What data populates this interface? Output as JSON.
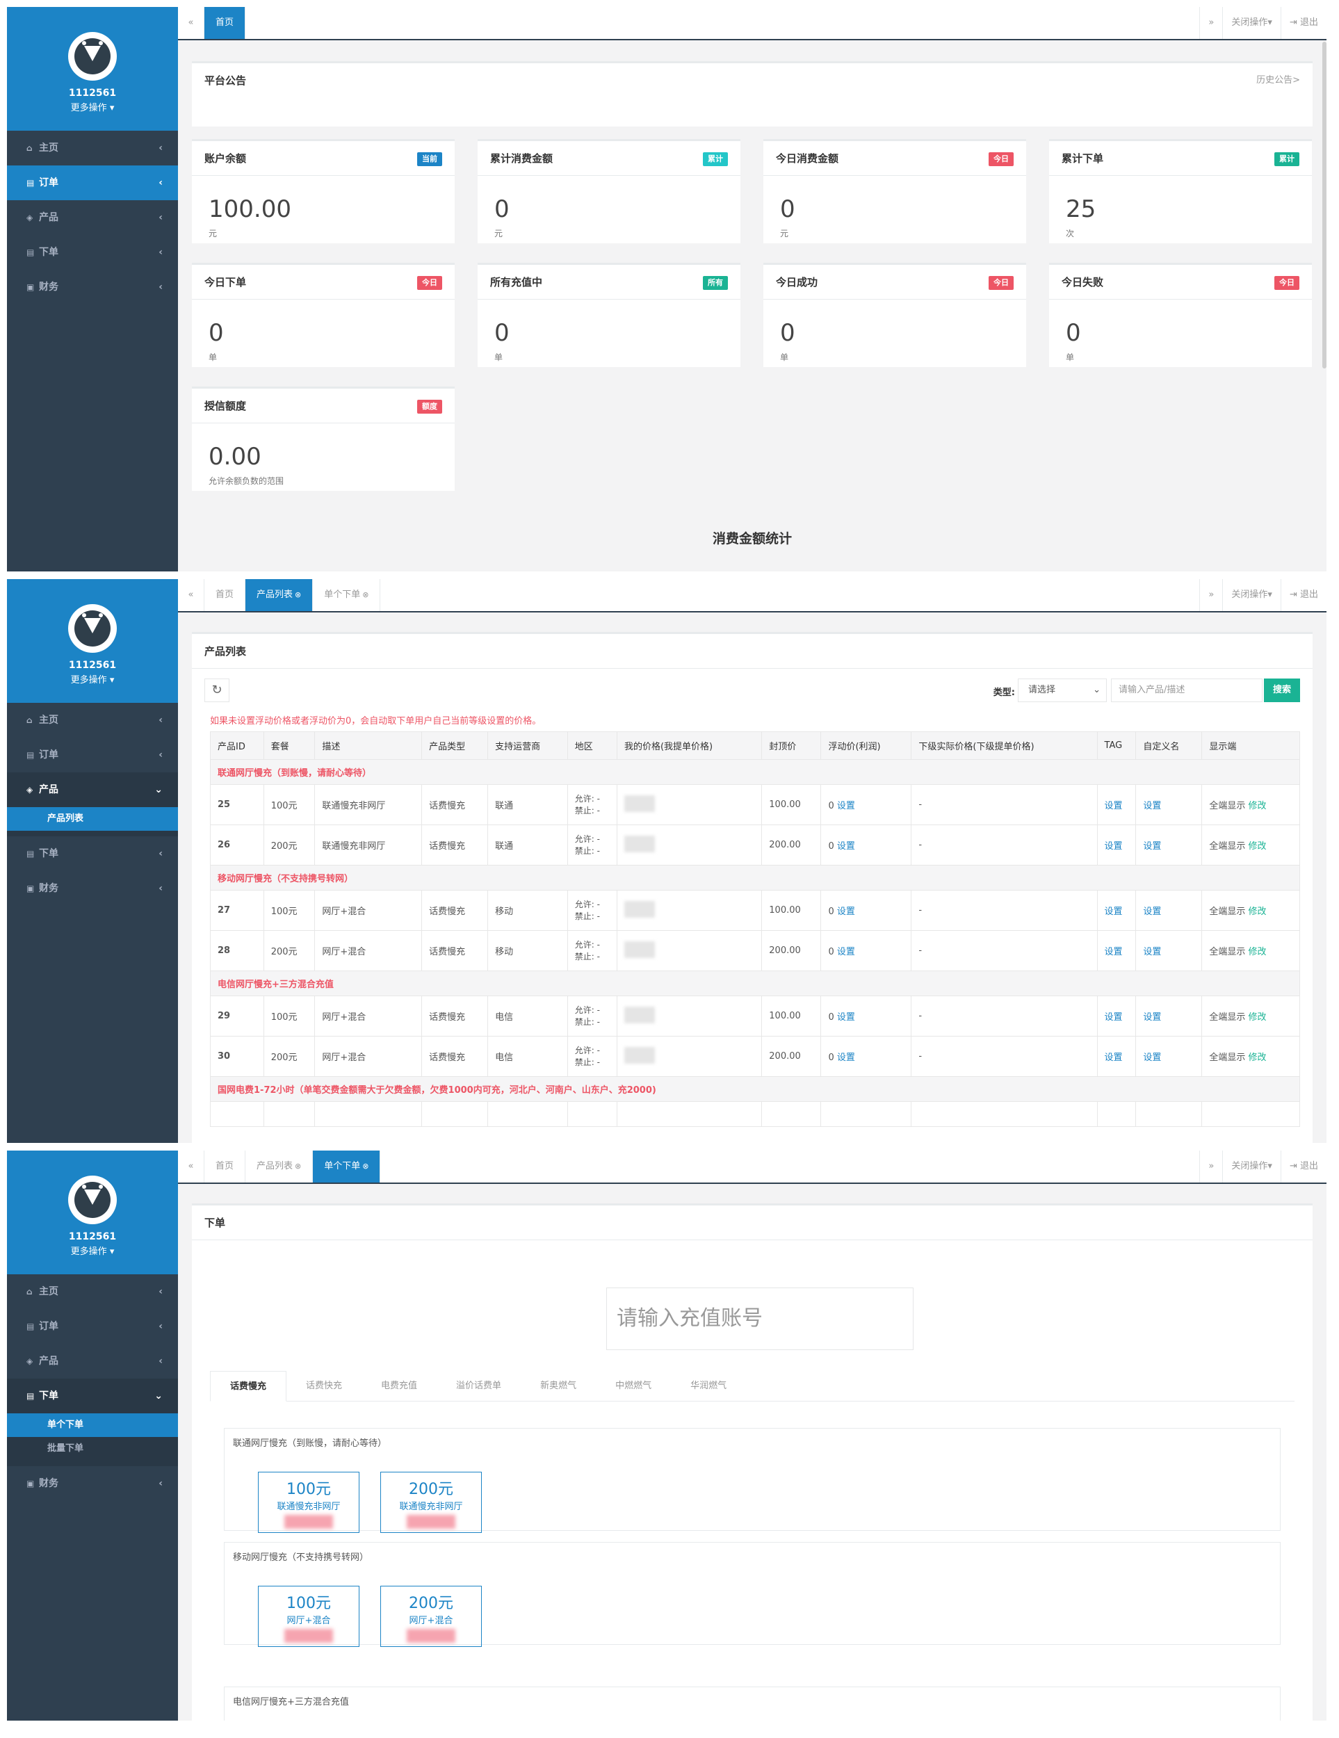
{
  "user": {
    "name": "1112561",
    "more": "更多操作"
  },
  "sidebar": {
    "home": "主页",
    "order": "订单",
    "product": "产品",
    "place_order": "下单",
    "finance": "财务",
    "product_list": "产品列表",
    "single_order": "单个下单",
    "batch_order": "批量下单"
  },
  "topbar": {
    "home_tab": "首页",
    "product_list_tab": "产品列表",
    "single_order_tab": "单个下单",
    "close_ops": "关闭操作",
    "logout": "退出"
  },
  "dashboard": {
    "notice_title": "平台公告",
    "history": "历史公告>",
    "cards": [
      {
        "title": "账户余额",
        "badge": "当前",
        "value": "100.00",
        "unit": "元",
        "color": "#1c84c6"
      },
      {
        "title": "累计消费金额",
        "badge": "累计",
        "value": "0",
        "unit": "元",
        "color": "#23c6c8"
      },
      {
        "title": "今日消费金额",
        "badge": "今日",
        "value": "0",
        "unit": "元",
        "color": "#ed5565"
      },
      {
        "title": "累计下单",
        "badge": "累计",
        "value": "25",
        "unit": "次",
        "color": "#1ab394"
      },
      {
        "title": "今日下单",
        "badge": "今日",
        "value": "0",
        "unit": "单",
        "color": "#ed5565"
      },
      {
        "title": "所有充值中",
        "badge": "所有",
        "value": "0",
        "unit": "单",
        "color": "#1ab394"
      },
      {
        "title": "今日成功",
        "badge": "今日",
        "value": "0",
        "unit": "单",
        "color": "#ed5565"
      },
      {
        "title": "今日失败",
        "badge": "今日",
        "value": "0",
        "unit": "单",
        "color": "#ed5565"
      },
      {
        "title": "授信额度",
        "badge": "额度",
        "value": "0.00",
        "unit": "允许余额负数的范围",
        "color": "#ed5565"
      }
    ],
    "stat_title": "消费金额统计"
  },
  "products": {
    "title": "产品列表",
    "type_label": "类型:",
    "type_value": "请选择",
    "search_placeholder": "请输入产品/描述",
    "search_btn": "搜索",
    "warning": "如果未设置浮动价格或者浮动价为0，会自动取下单用户自己当前等级设置的价格。",
    "headers": [
      "产品ID",
      "套餐",
      "描述",
      "产品类型",
      "支持运营商",
      "地区",
      "我的价格(我提单价格)",
      "封顶价",
      "浮动价(利润)",
      "下级实际价格(下级提单价格)",
      "TAG",
      "自定义名",
      "显示端"
    ],
    "allow": "允许: -",
    "forbid": "禁止: -",
    "float_value": "0",
    "set_link": "设置",
    "dash": "-",
    "display": "全端显示",
    "edit": "修改",
    "groups": [
      {
        "name": "联通网厅慢充（到账慢，请耐心等待）",
        "rows": [
          {
            "id": "25",
            "pkg": "100元",
            "desc": "联通慢充非网厅",
            "ptype": "话费慢充",
            "op": "联通",
            "cap": "100.00"
          },
          {
            "id": "26",
            "pkg": "200元",
            "desc": "联通慢充非网厅",
            "ptype": "话费慢充",
            "op": "联通",
            "cap": "200.00"
          }
        ]
      },
      {
        "name": "移动网厅慢充（不支持携号转网）",
        "rows": [
          {
            "id": "27",
            "pkg": "100元",
            "desc": "网厅+混合",
            "ptype": "话费慢充",
            "op": "移动",
            "cap": "100.00"
          },
          {
            "id": "28",
            "pkg": "200元",
            "desc": "网厅+混合",
            "ptype": "话费慢充",
            "op": "移动",
            "cap": "200.00"
          }
        ]
      },
      {
        "name": "电信网厅慢充+三方混合充值",
        "rows": [
          {
            "id": "29",
            "pkg": "100元",
            "desc": "网厅+混合",
            "ptype": "话费慢充",
            "op": "电信",
            "cap": "100.00"
          },
          {
            "id": "30",
            "pkg": "200元",
            "desc": "网厅+混合",
            "ptype": "话费慢充",
            "op": "电信",
            "cap": "200.00"
          }
        ]
      }
    ],
    "last_group": "国网电费1-72小时（单笔交费金额需大于欠费金额，欠费1000内可充，河北户、河南户、山东户、充2000)"
  },
  "order": {
    "title": "下单",
    "account_placeholder": "请输入充值账号",
    "tabs": [
      "话费慢充",
      "话费快充",
      "电费充值",
      "溢价话费单",
      "新奥燃气",
      "中燃燃气",
      "华润燃气"
    ],
    "groups": [
      {
        "name": "联通网厅慢充（到账慢，请耐心等待）",
        "cards": [
          {
            "value": "100元",
            "desc": "联通慢充非网厅"
          },
          {
            "value": "200元",
            "desc": "联通慢充非网厅"
          }
        ]
      },
      {
        "name": "移动网厅慢充（不支持携号转网）",
        "cards": [
          {
            "value": "100元",
            "desc": "网厅+混合"
          },
          {
            "value": "200元",
            "desc": "网厅+混合"
          }
        ]
      }
    ],
    "third_group": "电信网厅慢充+三方混合充值"
  }
}
